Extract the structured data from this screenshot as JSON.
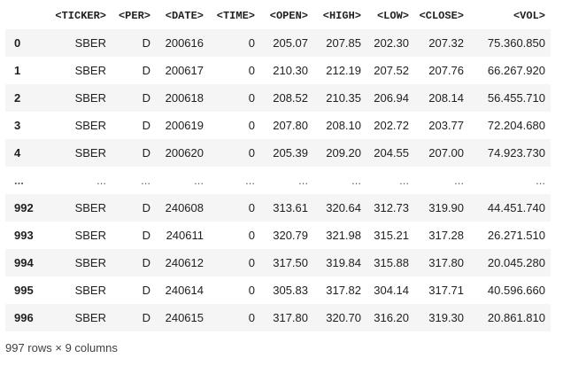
{
  "columns": [
    "<TICKER>",
    "<PER>",
    "<DATE>",
    "<TIME>",
    "<OPEN>",
    "<HIGH>",
    "<LOW>",
    "<CLOSE>",
    "<VOL>"
  ],
  "rows": [
    {
      "index": "0",
      "cells": [
        "SBER",
        "D",
        "200616",
        "0",
        "205.07",
        "207.85",
        "202.30",
        "207.32",
        "75.360.850"
      ]
    },
    {
      "index": "1",
      "cells": [
        "SBER",
        "D",
        "200617",
        "0",
        "210.30",
        "212.19",
        "207.52",
        "207.76",
        "66.267.920"
      ]
    },
    {
      "index": "2",
      "cells": [
        "SBER",
        "D",
        "200618",
        "0",
        "208.52",
        "210.35",
        "206.94",
        "208.14",
        "56.455.710"
      ]
    },
    {
      "index": "3",
      "cells": [
        "SBER",
        "D",
        "200619",
        "0",
        "207.80",
        "208.10",
        "202.72",
        "203.77",
        "72.204.680"
      ]
    },
    {
      "index": "4",
      "cells": [
        "SBER",
        "D",
        "200620",
        "0",
        "205.39",
        "209.20",
        "204.55",
        "207.00",
        "74.923.730"
      ]
    },
    {
      "index": "...",
      "cells": [
        "...",
        "...",
        "...",
        "...",
        "...",
        "...",
        "...",
        "...",
        "..."
      ]
    },
    {
      "index": "992",
      "cells": [
        "SBER",
        "D",
        "240608",
        "0",
        "313.61",
        "320.64",
        "312.73",
        "319.90",
        "44.451.740"
      ]
    },
    {
      "index": "993",
      "cells": [
        "SBER",
        "D",
        "240611",
        "0",
        "320.79",
        "321.98",
        "315.21",
        "317.28",
        "26.271.510"
      ]
    },
    {
      "index": "994",
      "cells": [
        "SBER",
        "D",
        "240612",
        "0",
        "317.50",
        "319.84",
        "315.88",
        "317.80",
        "20.045.280"
      ]
    },
    {
      "index": "995",
      "cells": [
        "SBER",
        "D",
        "240614",
        "0",
        "305.83",
        "317.82",
        "304.14",
        "317.71",
        "40.596.660"
      ]
    },
    {
      "index": "996",
      "cells": [
        "SBER",
        "D",
        "240615",
        "0",
        "317.80",
        "320.70",
        "316.20",
        "319.30",
        "20.861.810"
      ]
    }
  ],
  "footer": {
    "shape_text": "997 rows × 9 columns"
  }
}
